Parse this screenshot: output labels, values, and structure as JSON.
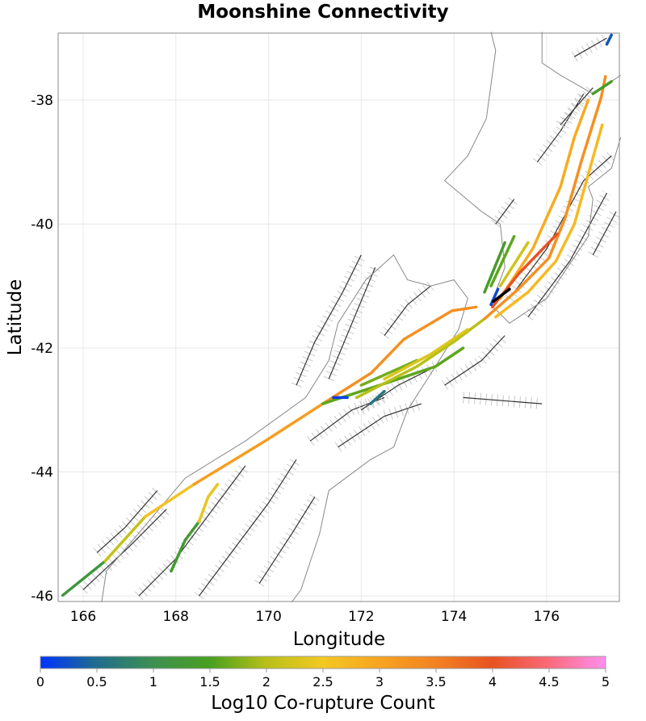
{
  "chart_data": {
    "type": "map",
    "title": "Moonshine Connectivity",
    "xlabel": "Longitude",
    "ylabel": "Latitude",
    "xlim": [
      165.46,
      177.57
    ],
    "ylim": [
      -46.09,
      -36.92
    ],
    "xticks": [
      "166",
      "168",
      "170",
      "172",
      "174",
      "176"
    ],
    "xtick_values": [
      166,
      168,
      170,
      172,
      174,
      176
    ],
    "yticks": [
      "-38",
      "-40",
      "-42",
      "-44",
      "-46"
    ],
    "ytick_values": [
      -38,
      -40,
      -42,
      -44,
      -46
    ],
    "grid": true,
    "colorbar": {
      "label": "Log10 Co-rupture Count",
      "range": [
        0,
        5
      ],
      "ticks": [
        "0",
        "0.5",
        "1",
        "1.5",
        "2",
        "2.5",
        "3",
        "3.5",
        "4",
        "4.5",
        "5"
      ],
      "stops": [
        {
          "v": 0,
          "c": "#0033ff"
        },
        {
          "v": 0.5,
          "c": "#1f6e8c"
        },
        {
          "v": 1,
          "c": "#3d9050"
        },
        {
          "v": 1.5,
          "c": "#48a020"
        },
        {
          "v": 2,
          "c": "#b8c018"
        },
        {
          "v": 2.5,
          "c": "#f4c822"
        },
        {
          "v": 3,
          "c": "#f7a420"
        },
        {
          "v": 3.5,
          "c": "#f28222"
        },
        {
          "v": 4,
          "c": "#e85222"
        },
        {
          "v": 4.5,
          "c": "#fa6a7a"
        },
        {
          "v": 5,
          "c": "#ff90f0"
        }
      ],
      "placement": "bottom"
    },
    "coastline": [
      [
        [
          166.4,
          -46.1
        ],
        [
          166.5,
          -45.6
        ],
        [
          167.3,
          -44.9
        ],
        [
          168.2,
          -44.1
        ],
        [
          169.5,
          -43.5
        ],
        [
          170.8,
          -42.8
        ],
        [
          171.3,
          -42.2
        ],
        [
          171.5,
          -41.6
        ],
        [
          172.1,
          -40.9
        ],
        [
          172.7,
          -40.5
        ],
        [
          173.0,
          -40.9
        ],
        [
          173.5,
          -41.0
        ],
        [
          174.0,
          -40.9
        ],
        [
          174.3,
          -41.2
        ],
        [
          174.1,
          -41.7
        ],
        [
          173.6,
          -42.3
        ],
        [
          173.0,
          -43.0
        ],
        [
          172.7,
          -43.6
        ],
        [
          172.2,
          -43.8
        ],
        [
          171.3,
          -44.3
        ],
        [
          171.1,
          -45.0
        ],
        [
          170.7,
          -45.9
        ],
        [
          170.5,
          -46.1
        ]
      ],
      [
        [
          174.8,
          -41.3
        ],
        [
          175.2,
          -41.6
        ],
        [
          176.0,
          -41.2
        ],
        [
          176.9,
          -40.2
        ],
        [
          177.0,
          -39.6
        ],
        [
          176.9,
          -39.4
        ],
        [
          177.4,
          -39.1
        ],
        [
          177.6,
          -38.6
        ]
      ],
      [
        [
          174.8,
          -41.3
        ],
        [
          175.1,
          -40.7
        ],
        [
          175.0,
          -40.0
        ],
        [
          174.6,
          -39.8
        ],
        [
          173.8,
          -39.3
        ],
        [
          174.3,
          -38.9
        ],
        [
          174.7,
          -38.3
        ],
        [
          174.9,
          -37.2
        ],
        [
          174.8,
          -36.9
        ]
      ],
      [
        [
          175.9,
          -36.9
        ],
        [
          175.9,
          -37.4
        ],
        [
          176.3,
          -37.6
        ],
        [
          177.0,
          -37.9
        ],
        [
          177.6,
          -37.6
        ]
      ]
    ],
    "background_faults": [
      [
        [
          166.0,
          -45.9
        ],
        [
          167.0,
          -45.2
        ],
        [
          167.8,
          -44.6
        ]
      ],
      [
        [
          167.2,
          -46.0
        ],
        [
          168.0,
          -45.4
        ],
        [
          168.8,
          -44.6
        ],
        [
          169.5,
          -43.9
        ]
      ],
      [
        [
          168.5,
          -46.0
        ],
        [
          169.2,
          -45.3
        ],
        [
          170.0,
          -44.5
        ],
        [
          170.6,
          -43.8
        ]
      ],
      [
        [
          169.8,
          -45.8
        ],
        [
          170.5,
          -45.0
        ],
        [
          171.0,
          -44.4
        ]
      ],
      [
        [
          170.9,
          -43.5
        ],
        [
          171.8,
          -43.0
        ],
        [
          172.5,
          -42.8
        ]
      ],
      [
        [
          171.5,
          -43.6
        ],
        [
          172.5,
          -43.1
        ],
        [
          173.3,
          -42.9
        ]
      ],
      [
        [
          171.3,
          -42.5
        ],
        [
          171.8,
          -41.6
        ],
        [
          172.3,
          -40.7
        ]
      ],
      [
        [
          170.6,
          -42.6
        ],
        [
          171.0,
          -41.9
        ],
        [
          171.6,
          -41.1
        ],
        [
          172.0,
          -40.5
        ]
      ],
      [
        [
          172.5,
          -41.8
        ],
        [
          173.0,
          -41.3
        ],
        [
          173.5,
          -41.0
        ]
      ],
      [
        [
          174.2,
          -42.8
        ],
        [
          175.9,
          -42.9
        ]
      ],
      [
        [
          175.6,
          -41.5
        ],
        [
          176.5,
          -40.6
        ],
        [
          177.3,
          -39.5
        ]
      ],
      [
        [
          175.2,
          -41.2
        ],
        [
          176.0,
          -40.4
        ],
        [
          176.8,
          -39.3
        ],
        [
          177.4,
          -38.9
        ]
      ],
      [
        [
          175.8,
          -39.0
        ],
        [
          176.3,
          -38.5
        ],
        [
          176.8,
          -37.9
        ]
      ],
      [
        [
          174.9,
          -40.0
        ],
        [
          175.3,
          -39.6
        ]
      ],
      [
        [
          176.6,
          -37.3
        ],
        [
          177.3,
          -37.0
        ]
      ],
      [
        [
          176.3,
          -38.4
        ],
        [
          177.0,
          -37.8
        ]
      ],
      [
        [
          172.0,
          -43.0
        ],
        [
          172.8,
          -42.6
        ],
        [
          173.6,
          -42.3
        ]
      ],
      [
        [
          166.3,
          -45.3
        ],
        [
          166.9,
          -44.9
        ],
        [
          167.6,
          -44.3
        ]
      ],
      [
        [
          173.8,
          -42.6
        ],
        [
          174.6,
          -42.2
        ],
        [
          175.1,
          -41.8
        ]
      ],
      [
        [
          177.0,
          -40.5
        ],
        [
          177.5,
          -39.8
        ]
      ]
    ],
    "ruptures": [
      {
        "v": 1.2,
        "pts": [
          [
            165.56,
            -45.99
          ],
          [
            166.47,
            -45.44
          ]
        ]
      },
      {
        "v": 2.1,
        "pts": [
          [
            166.47,
            -45.44
          ],
          [
            167.34,
            -44.72
          ]
        ]
      },
      {
        "v": 2.6,
        "pts": [
          [
            167.34,
            -44.72
          ],
          [
            168.39,
            -44.2
          ]
        ]
      },
      {
        "v": 3.1,
        "pts": [
          [
            168.39,
            -44.2
          ],
          [
            169.95,
            -43.49
          ],
          [
            171.17,
            -42.9
          ]
        ]
      },
      {
        "v": 3.3,
        "pts": [
          [
            171.17,
            -42.9
          ],
          [
            172.22,
            -42.4
          ],
          [
            172.92,
            -41.86
          ],
          [
            173.96,
            -41.4
          ],
          [
            174.48,
            -41.34
          ]
        ]
      },
      {
        "v": 1.3,
        "pts": [
          [
            167.9,
            -45.6
          ],
          [
            168.2,
            -45.1
          ],
          [
            168.5,
            -44.8
          ]
        ]
      },
      {
        "v": 2.4,
        "pts": [
          [
            168.5,
            -44.8
          ],
          [
            168.7,
            -44.4
          ],
          [
            168.9,
            -44.2
          ]
        ]
      },
      {
        "v": 1.6,
        "pts": [
          [
            171.17,
            -42.9
          ],
          [
            172.4,
            -42.6
          ],
          [
            173.6,
            -42.3
          ],
          [
            174.2,
            -42.0
          ]
        ]
      },
      {
        "v": 2.0,
        "pts": [
          [
            171.9,
            -42.8
          ],
          [
            173.2,
            -42.3
          ],
          [
            174.0,
            -41.9
          ],
          [
            174.66,
            -41.53
          ]
        ]
      },
      {
        "v": 1.7,
        "pts": [
          [
            172.0,
            -42.6
          ],
          [
            173.2,
            -42.2
          ]
        ]
      },
      {
        "v": 2.3,
        "pts": [
          [
            172.5,
            -42.5
          ],
          [
            173.5,
            -42.1
          ],
          [
            174.3,
            -41.7
          ]
        ]
      },
      {
        "v": 0.1,
        "pts": [
          [
            171.4,
            -42.8
          ],
          [
            171.7,
            -42.8
          ]
        ]
      },
      {
        "v": 0.6,
        "pts": [
          [
            172.2,
            -42.9
          ],
          [
            172.5,
            -42.7
          ]
        ]
      },
      {
        "v": 3.3,
        "pts": [
          [
            174.66,
            -41.53
          ],
          [
            175.36,
            -41.07
          ],
          [
            176.05,
            -40.55
          ],
          [
            176.4,
            -39.9
          ],
          [
            176.75,
            -38.99
          ],
          [
            177.18,
            -37.95
          ],
          [
            177.27,
            -37.62
          ]
        ]
      },
      {
        "v": 2.7,
        "pts": [
          [
            174.9,
            -41.5
          ],
          [
            175.6,
            -41.1
          ],
          [
            176.2,
            -40.6
          ],
          [
            176.6,
            -40.0
          ],
          [
            176.9,
            -39.2
          ],
          [
            177.2,
            -38.4
          ]
        ]
      },
      {
        "v": 2.9,
        "pts": [
          [
            175.0,
            -41.2
          ],
          [
            175.7,
            -40.4
          ],
          [
            176.3,
            -39.4
          ],
          [
            176.6,
            -38.6
          ],
          [
            176.9,
            -38.0
          ]
        ]
      },
      {
        "v": 4.0,
        "pts": [
          [
            174.83,
            -41.34
          ],
          [
            175.4,
            -40.8
          ],
          [
            176.23,
            -40.16
          ]
        ]
      },
      {
        "v": 1.4,
        "pts": [
          [
            174.66,
            -41.1
          ],
          [
            175.1,
            -40.3
          ]
        ]
      },
      {
        "v": 1.6,
        "pts": [
          [
            174.8,
            -41.0
          ],
          [
            175.3,
            -40.2
          ]
        ]
      },
      {
        "v": 2.2,
        "pts": [
          [
            175.0,
            -41.0
          ],
          [
            175.6,
            -40.3
          ]
        ]
      },
      {
        "v": 1.4,
        "pts": [
          [
            177.0,
            -37.9
          ],
          [
            177.4,
            -37.7
          ]
        ]
      },
      {
        "v": 0.3,
        "pts": [
          [
            177.3,
            -37.1
          ],
          [
            177.4,
            -36.95
          ]
        ]
      },
      {
        "v": 0.2,
        "pts": [
          [
            174.8,
            -41.3
          ],
          [
            174.95,
            -41.05
          ]
        ]
      },
      {
        "v": null,
        "color": "#000000",
        "pts": [
          [
            174.85,
            -41.25
          ],
          [
            175.2,
            -41.05
          ]
        ]
      }
    ]
  }
}
